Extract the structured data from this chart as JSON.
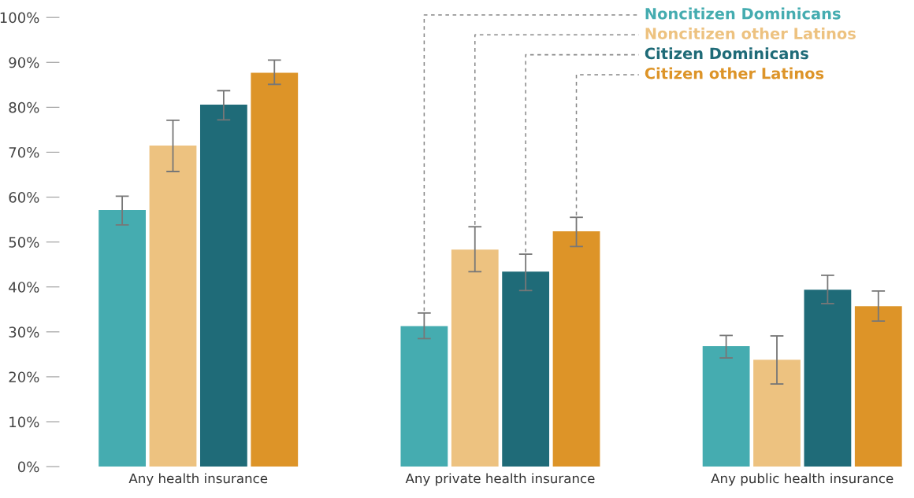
{
  "chart_data": {
    "type": "bar",
    "categories": [
      "Any health insurance",
      "Any private health insurance",
      "Any public health insurance"
    ],
    "series": [
      {
        "name": "Noncitizen Dominicans",
        "color": "#45acb0",
        "values": [
          57.1,
          31.3,
          26.8
        ],
        "errors": [
          [
            53.8,
            60.2
          ],
          [
            28.5,
            34.2
          ],
          [
            24.2,
            29.2
          ]
        ]
      },
      {
        "name": "Noncitizen other Latinos",
        "color": "#edc280",
        "values": [
          71.5,
          48.3,
          23.8
        ],
        "errors": [
          [
            65.7,
            77.1
          ],
          [
            43.4,
            53.4
          ],
          [
            18.4,
            29.1
          ]
        ]
      },
      {
        "name": "Citizen Dominicans",
        "color": "#1f6b78",
        "values": [
          80.6,
          43.4,
          39.4
        ],
        "errors": [
          [
            77.2,
            83.7
          ],
          [
            39.2,
            47.3
          ],
          [
            36.3,
            42.6
          ]
        ]
      },
      {
        "name": "Citizen other Latinos",
        "color": "#dd9428",
        "values": [
          87.7,
          52.4,
          35.7
        ],
        "errors": [
          [
            85.1,
            90.5
          ],
          [
            49.0,
            55.5
          ],
          [
            32.4,
            39.1
          ]
        ]
      }
    ],
    "ylim": [
      0,
      100
    ],
    "yticks": [
      {
        "value": 0,
        "label": "0%"
      },
      {
        "value": 10,
        "label": "10%"
      },
      {
        "value": 20,
        "label": "20%"
      },
      {
        "value": 30,
        "label": "30%"
      },
      {
        "value": 40,
        "label": "40%"
      },
      {
        "value": 50,
        "label": "50%"
      },
      {
        "value": 60,
        "label": "60%"
      },
      {
        "value": 70,
        "label": "70%"
      },
      {
        "value": 80,
        "label": "80%"
      },
      {
        "value": 90,
        "label": "90%"
      },
      {
        "value": 100,
        "label": "100%"
      }
    ],
    "grid": false
  }
}
